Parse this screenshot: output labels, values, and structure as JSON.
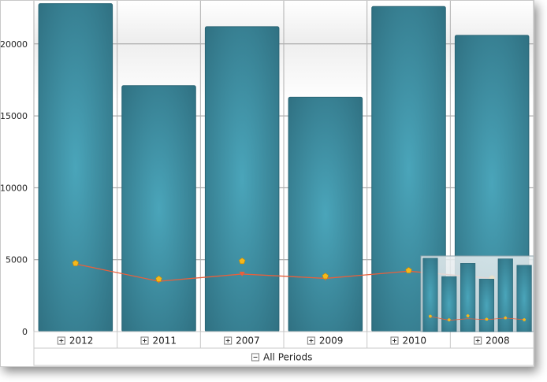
{
  "chart_data": {
    "type": "bar",
    "categories": [
      "2012",
      "2011",
      "2007",
      "2009",
      "2010",
      "2008"
    ],
    "series": [
      {
        "values": [
          22800,
          17100,
          21200,
          16300,
          22600,
          20600
        ]
      },
      {
        "values": [
          4700,
          3500,
          4000,
          3700,
          4200,
          3700
        ]
      }
    ],
    "line_marker_values": [
      4750,
      3650,
      4900,
      3850,
      4250,
      3700
    ],
    "ylim": [
      0,
      23000
    ],
    "yticks": [
      "0",
      "5000",
      "10000",
      "15000",
      "20000"
    ],
    "ytick_values": [
      0,
      5000,
      10000,
      15000,
      20000
    ],
    "grid": true,
    "footer_label": "All Periods",
    "colors": {
      "bar_center": "#4aa5ba",
      "bar_edge": "#2e6d7e",
      "line": "#e8603c",
      "marker": "#f5b81b"
    },
    "icons": {
      "expand": "plus-box-icon",
      "collapse": "minus-box-icon"
    }
  }
}
